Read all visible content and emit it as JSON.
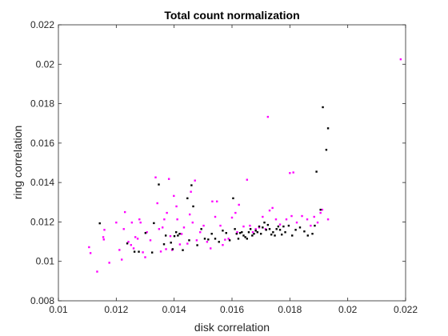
{
  "chart_data": {
    "type": "scatter",
    "title": "Total count normalization",
    "xlabel": "disk correlation",
    "ylabel": "ring correlation",
    "xlim": [
      0.01,
      0.022
    ],
    "ylim": [
      0.008,
      0.022
    ],
    "xticks": [
      0.01,
      0.012,
      0.014,
      0.016,
      0.018,
      0.02,
      0.022
    ],
    "yticks": [
      0.008,
      0.01,
      0.012,
      0.014,
      0.016,
      0.018,
      0.02,
      0.022
    ],
    "xtick_labels": [
      "0.01",
      "0.012",
      "0.014",
      "0.016",
      "0.018",
      "0.02",
      "0.022"
    ],
    "ytick_labels": [
      "0.008",
      "0.01",
      "0.012",
      "0.014",
      "0.016",
      "0.018",
      "0.02",
      "0.022"
    ],
    "grid": false,
    "box": true,
    "series": [
      {
        "color": "#ff00ff",
        "points": [
          [
            0.01106,
            0.01072
          ],
          [
            0.01111,
            0.01042
          ],
          [
            0.01134,
            0.00948
          ],
          [
            0.01155,
            0.01123
          ],
          [
            0.01157,
            0.01111
          ],
          [
            0.01159,
            0.0116
          ],
          [
            0.01176,
            0.00993
          ],
          [
            0.012,
            0.01197
          ],
          [
            0.01211,
            0.01058
          ],
          [
            0.01219,
            0.01009
          ],
          [
            0.01226,
            0.01164
          ],
          [
            0.0123,
            0.0125
          ],
          [
            0.01242,
            0.01099
          ],
          [
            0.01251,
            0.01083
          ],
          [
            0.01254,
            0.01197
          ],
          [
            0.0126,
            0.01066
          ],
          [
            0.01266,
            0.01123
          ],
          [
            0.01274,
            0.01115
          ],
          [
            0.0128,
            0.01213
          ],
          [
            0.01284,
            0.01197
          ],
          [
            0.01292,
            0.01046
          ],
          [
            0.013,
            0.01021
          ],
          [
            0.01306,
            0.01148
          ],
          [
            0.01318,
            0.01107
          ],
          [
            0.01336,
            0.01426
          ],
          [
            0.01342,
            0.01295
          ],
          [
            0.01348,
            0.01164
          ],
          [
            0.01354,
            0.0105
          ],
          [
            0.0136,
            0.01172
          ],
          [
            0.01366,
            0.01213
          ],
          [
            0.01372,
            0.01062
          ],
          [
            0.01375,
            0.01246
          ],
          [
            0.01382,
            0.01418
          ],
          [
            0.01387,
            0.01128
          ],
          [
            0.01393,
            0.01058
          ],
          [
            0.01399,
            0.01332
          ],
          [
            0.01408,
            0.01279
          ],
          [
            0.01411,
            0.01213
          ],
          [
            0.0142,
            0.01086
          ],
          [
            0.01426,
            0.01139
          ],
          [
            0.01434,
            0.01172
          ],
          [
            0.01446,
            0.0109
          ],
          [
            0.01454,
            0.01238
          ],
          [
            0.01458,
            0.01353
          ],
          [
            0.01464,
            0.01197
          ],
          [
            0.01472,
            0.0141
          ],
          [
            0.01478,
            0.01107
          ],
          [
            0.0149,
            0.01148
          ],
          [
            0.01502,
            0.01181
          ],
          [
            0.01514,
            0.01099
          ],
          [
            0.01526,
            0.01066
          ],
          [
            0.01532,
            0.01304
          ],
          [
            0.01542,
            0.01226
          ],
          [
            0.01548,
            0.01304
          ],
          [
            0.0156,
            0.01181
          ],
          [
            0.01568,
            0.01083
          ],
          [
            0.01576,
            0.0111
          ],
          [
            0.01588,
            0.01115
          ],
          [
            0.016,
            0.01222
          ],
          [
            0.01612,
            0.01246
          ],
          [
            0.01618,
            0.01148
          ],
          [
            0.01624,
            0.01287
          ],
          [
            0.0164,
            0.01177
          ],
          [
            0.01652,
            0.01414
          ],
          [
            0.01662,
            0.01181
          ],
          [
            0.01672,
            0.01148
          ],
          [
            0.01682,
            0.01164
          ],
          [
            0.01694,
            0.01172
          ],
          [
            0.01706,
            0.01226
          ],
          [
            0.01716,
            0.01164
          ],
          [
            0.01724,
            0.01733
          ],
          [
            0.0173,
            0.01258
          ],
          [
            0.0174,
            0.01271
          ],
          [
            0.01752,
            0.01213
          ],
          [
            0.01766,
            0.01187
          ],
          [
            0.01788,
            0.01213
          ],
          [
            0.018,
            0.01448
          ],
          [
            0.01806,
            0.0123
          ],
          [
            0.01812,
            0.01451
          ],
          [
            0.01824,
            0.01197
          ],
          [
            0.01842,
            0.0123
          ],
          [
            0.0186,
            0.01213
          ],
          [
            0.01872,
            0.01181
          ],
          [
            0.01884,
            0.01226
          ],
          [
            0.01896,
            0.01197
          ],
          [
            0.01906,
            0.01246
          ],
          [
            0.01912,
            0.01262
          ],
          [
            0.01932,
            0.01213
          ],
          [
            0.02183,
            0.02025
          ]
        ]
      },
      {
        "color": "#000000",
        "points": [
          [
            0.01143,
            0.01193
          ],
          [
            0.01238,
            0.01091
          ],
          [
            0.01263,
            0.01049
          ],
          [
            0.01278,
            0.01049
          ],
          [
            0.01301,
            0.01144
          ],
          [
            0.01324,
            0.01045
          ],
          [
            0.0133,
            0.01194
          ],
          [
            0.01347,
            0.0139
          ],
          [
            0.01365,
            0.01087
          ],
          [
            0.01371,
            0.01131
          ],
          [
            0.01389,
            0.01095
          ],
          [
            0.01395,
            0.01062
          ],
          [
            0.01401,
            0.01128
          ],
          [
            0.01407,
            0.01148
          ],
          [
            0.01413,
            0.01131
          ],
          [
            0.01419,
            0.0114
          ],
          [
            0.0143,
            0.01057
          ],
          [
            0.01446,
            0.0132
          ],
          [
            0.01452,
            0.01107
          ],
          [
            0.0146,
            0.01386
          ],
          [
            0.01466,
            0.01279
          ],
          [
            0.0148,
            0.01082
          ],
          [
            0.01494,
            0.01164
          ],
          [
            0.01506,
            0.01115
          ],
          [
            0.01518,
            0.01111
          ],
          [
            0.0153,
            0.0114
          ],
          [
            0.01542,
            0.01115
          ],
          [
            0.01555,
            0.01099
          ],
          [
            0.01568,
            0.01156
          ],
          [
            0.0158,
            0.01144
          ],
          [
            0.01592,
            0.01107
          ],
          [
            0.01604,
            0.0132
          ],
          [
            0.0161,
            0.01164
          ],
          [
            0.01616,
            0.0114
          ],
          [
            0.01622,
            0.01115
          ],
          [
            0.01628,
            0.01144
          ],
          [
            0.01634,
            0.01148
          ],
          [
            0.0164,
            0.01131
          ],
          [
            0.01646,
            0.01123
          ],
          [
            0.01652,
            0.01115
          ],
          [
            0.01658,
            0.01148
          ],
          [
            0.01664,
            0.01164
          ],
          [
            0.0167,
            0.01131
          ],
          [
            0.01676,
            0.0114
          ],
          [
            0.01682,
            0.01156
          ],
          [
            0.01688,
            0.01148
          ],
          [
            0.01694,
            0.01177
          ],
          [
            0.017,
            0.0114
          ],
          [
            0.01706,
            0.01172
          ],
          [
            0.01712,
            0.01197
          ],
          [
            0.01718,
            0.0116
          ],
          [
            0.01724,
            0.01185
          ],
          [
            0.0173,
            0.01164
          ],
          [
            0.01736,
            0.01136
          ],
          [
            0.01742,
            0.01148
          ],
          [
            0.01748,
            0.01131
          ],
          [
            0.01754,
            0.01164
          ],
          [
            0.0176,
            0.01177
          ],
          [
            0.01766,
            0.0116
          ],
          [
            0.01772,
            0.01136
          ],
          [
            0.01778,
            0.01177
          ],
          [
            0.01784,
            0.01148
          ],
          [
            0.01796,
            0.01181
          ],
          [
            0.01808,
            0.01131
          ],
          [
            0.0182,
            0.0116
          ],
          [
            0.01835,
            0.01172
          ],
          [
            0.0185,
            0.01152
          ],
          [
            0.01862,
            0.01131
          ],
          [
            0.01878,
            0.0114
          ],
          [
            0.01886,
            0.01181
          ],
          [
            0.01892,
            0.01455
          ],
          [
            0.01906,
            0.01262
          ],
          [
            0.01914,
            0.01782
          ],
          [
            0.01926,
            0.01566
          ],
          [
            0.01932,
            0.01675
          ]
        ]
      }
    ]
  }
}
